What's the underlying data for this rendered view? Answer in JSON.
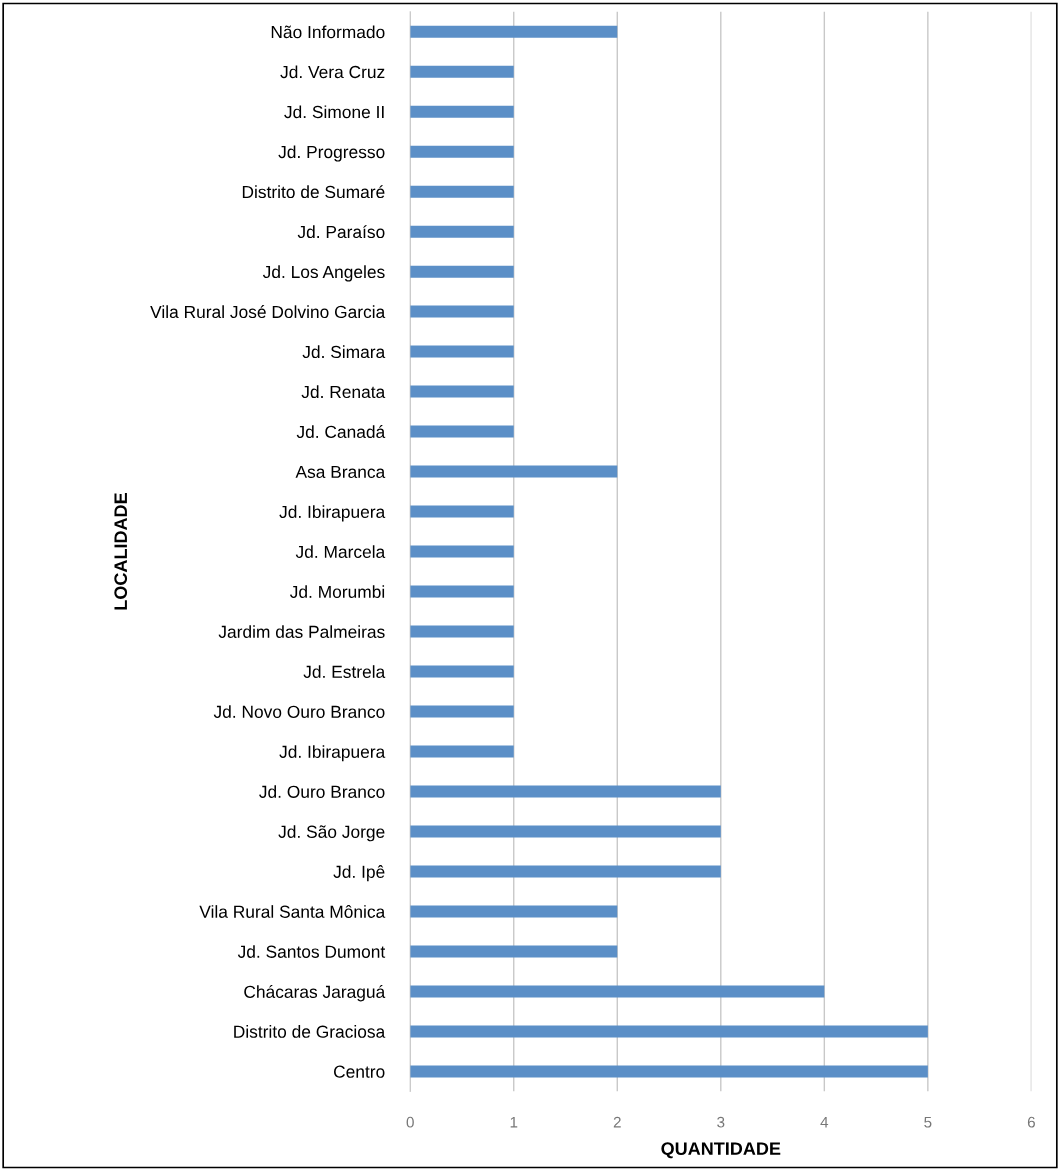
{
  "chart_data": {
    "type": "bar",
    "orientation": "horizontal",
    "xlabel": "QUANTIDADE",
    "ylabel": "LOCALIDADE",
    "categories": [
      "Não Informado",
      "Jd. Vera Cruz",
      "Jd. Simone II",
      "Jd. Progresso",
      "Distrito de Sumaré",
      "Jd. Paraíso",
      "Jd. Los Angeles",
      "Vila Rural José Dolvino Garcia",
      "Jd. Simara",
      "Jd. Renata",
      "Jd. Canadá",
      "Asa Branca",
      "Jd. Ibirapuera",
      "Jd. Marcela",
      "Jd. Morumbi",
      "Jardim das Palmeiras",
      "Jd. Estrela",
      "Jd. Novo Ouro Branco",
      "Jd. Ibirapuera",
      "Jd. Ouro Branco",
      "Jd. São Jorge",
      "Jd. Ipê",
      "Vila Rural Santa Mônica",
      "Jd. Santos Dumont",
      "Chácaras Jaraguá",
      "Distrito de Graciosa",
      "Centro"
    ],
    "values": [
      2,
      1,
      1,
      1,
      1,
      1,
      1,
      1,
      1,
      1,
      1,
      2,
      1,
      1,
      1,
      1,
      1,
      1,
      1,
      3,
      3,
      3,
      2,
      2,
      4,
      5,
      5
    ],
    "color": "#5b8fc7",
    "xlim": [
      0,
      6
    ],
    "xticks": [
      0,
      1,
      2,
      3,
      4,
      5,
      6
    ],
    "grid": "x",
    "legend": false
  }
}
